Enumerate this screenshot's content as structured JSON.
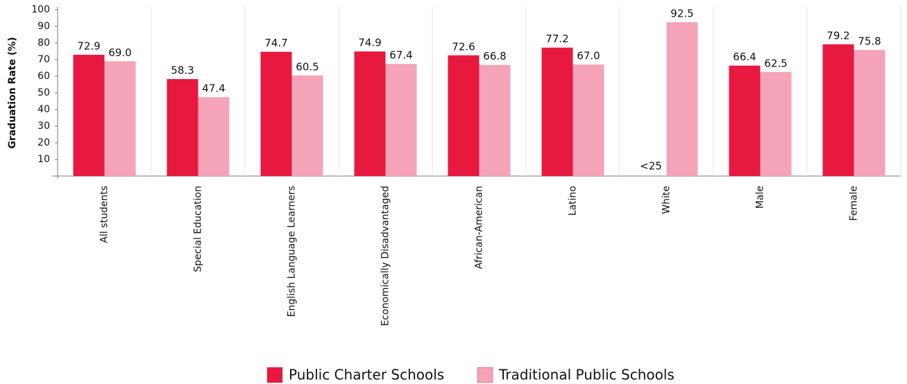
{
  "chart_data": {
    "type": "bar",
    "y_label": "Graduation Rate (%)",
    "categories": [
      "All students",
      "Special Education",
      "English Language Learners",
      "Economically Disadvantaged",
      "African-American",
      "Latino",
      "White",
      "Male",
      "Female"
    ],
    "series": [
      {
        "name": "Public Charter Schools",
        "color": "#e8193f",
        "values": [
          72.9,
          58.3,
          74.7,
          74.9,
          72.6,
          77.2,
          null,
          66.4,
          79.2
        ],
        "value_labels": [
          "72.9",
          "58.3",
          "74.7",
          "74.9",
          "72.6",
          "77.2",
          "<25",
          "66.4",
          "79.2"
        ]
      },
      {
        "name": "Traditional Public Schools",
        "color": "#f5a3b9",
        "values": [
          69.0,
          47.4,
          60.5,
          67.4,
          66.8,
          67.0,
          92.5,
          62.5,
          75.8
        ],
        "value_labels": [
          "69.0",
          "47.4",
          "60.5",
          "67.4",
          "66.8",
          "67.0",
          "92.5",
          "62.5",
          "75.8"
        ]
      }
    ],
    "ylim": [
      0,
      100
    ],
    "yticks": [
      10,
      20,
      30,
      40,
      50,
      60,
      70,
      80,
      90,
      100
    ]
  }
}
